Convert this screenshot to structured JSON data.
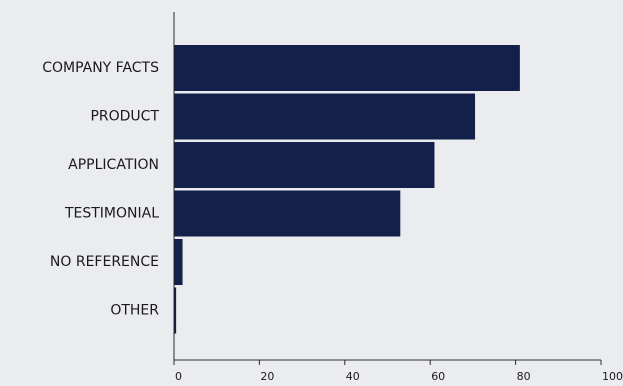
{
  "chart_data": {
    "type": "bar",
    "orientation": "horizontal",
    "categories": [
      "COMPANY FACTS",
      "PRODUCT",
      "APPLICATION",
      "TESTIMONIAL",
      "NO REFERENCE",
      "OTHER"
    ],
    "values": [
      81,
      70.5,
      61,
      53,
      2,
      0.5
    ],
    "xlim": [
      0,
      100
    ],
    "xticks": [
      "0",
      "20",
      "40",
      "60",
      "80",
      "100"
    ],
    "title": "",
    "xlabel": "",
    "ylabel": "",
    "grid": false,
    "colors": {
      "bar": "#13204a",
      "axis": "#2b2b2b",
      "background": "#ebecef"
    }
  }
}
